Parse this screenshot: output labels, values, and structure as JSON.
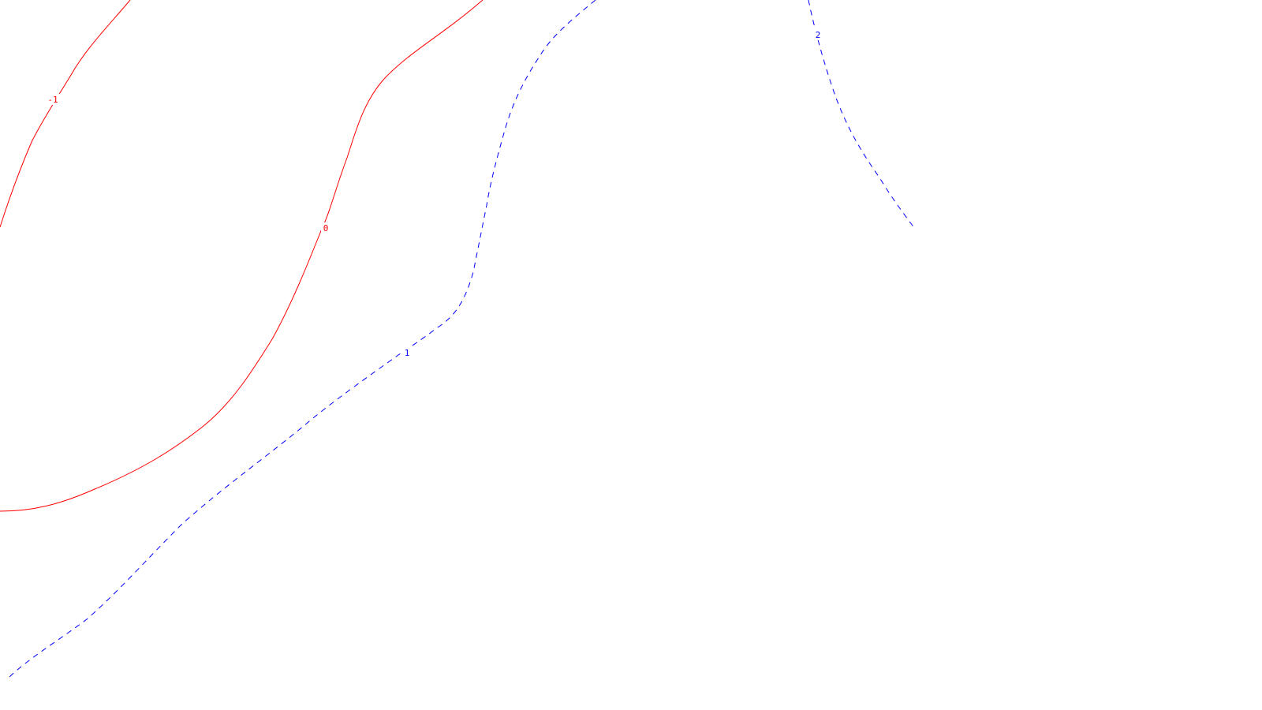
{
  "chart_data": {
    "type": "contour",
    "title": "",
    "xlabel": "",
    "ylabel": "",
    "colors": {
      "negative": "#ff0000",
      "zero": "#ff0000",
      "positive": "#0000ff",
      "background": "#ffffff"
    },
    "levels": [
      {
        "name": "level-minus-1",
        "value": -1,
        "label": "-1",
        "style": "solid",
        "color": "#ff0000"
      },
      {
        "name": "level-0",
        "value": 0,
        "label": "0",
        "style": "solid",
        "color": "#ff0000"
      },
      {
        "name": "level-1",
        "value": 1,
        "label": "1",
        "style": "dashed",
        "color": "#0000ff"
      },
      {
        "name": "level-2",
        "value": 2,
        "label": "2",
        "style": "dashed",
        "color": "#0000ff"
      }
    ]
  }
}
